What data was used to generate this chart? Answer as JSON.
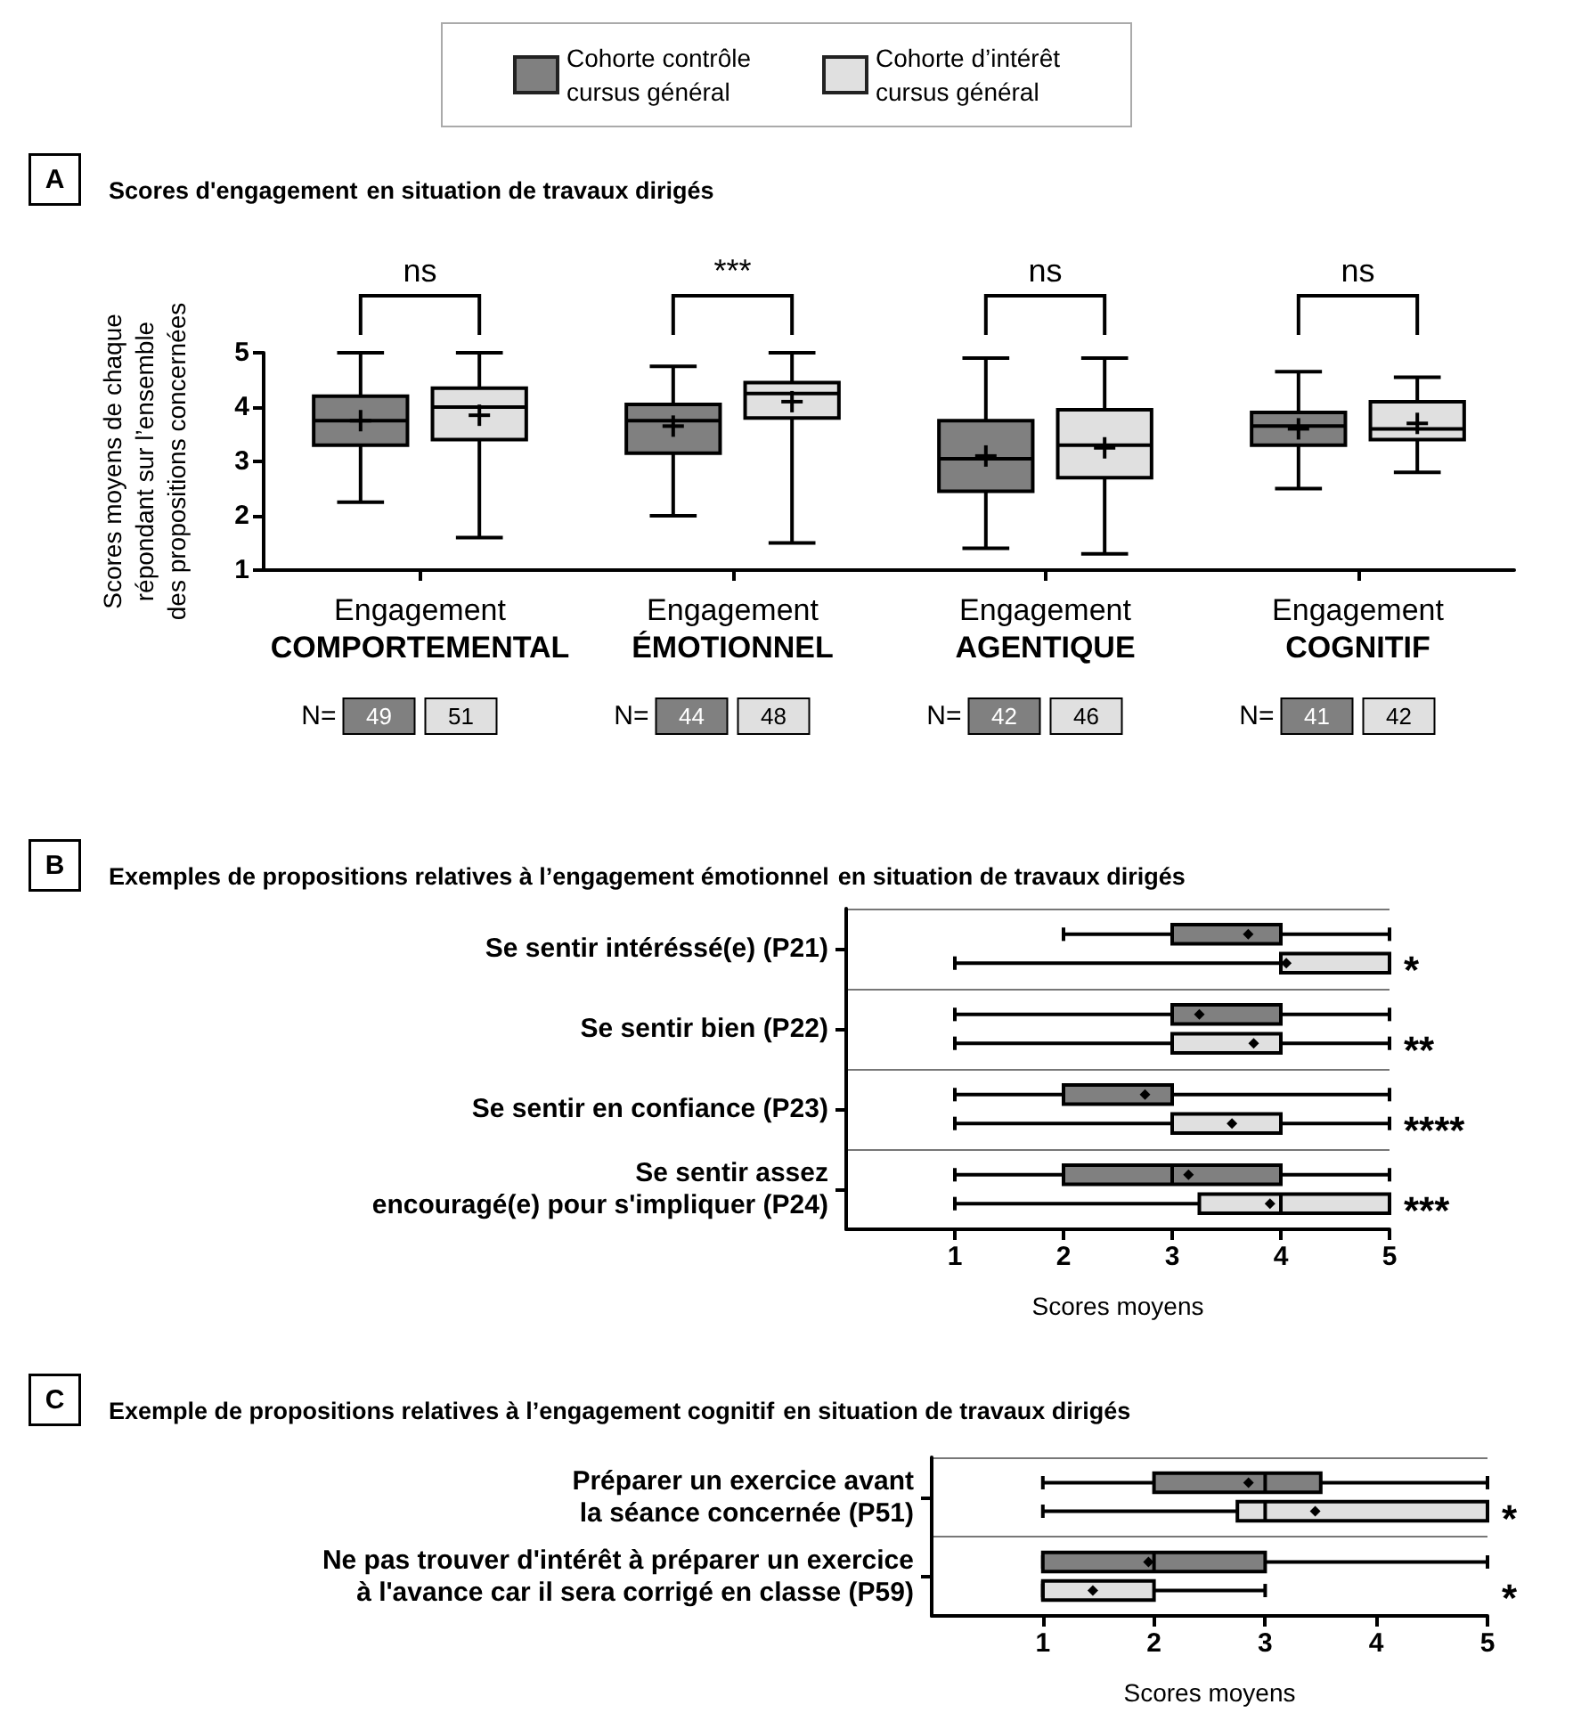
{
  "chart_data": [
    {
      "type": "box",
      "title": "Scores d'engagement",
      "subtitle": "en situation de travaux dirigés",
      "ylabel": "Scores moyens de chaque\nrépondant sur l’ensemble\ndes propositions concernées",
      "categories": [
        "Engagement\nCOMPORTEMENTAL",
        "Engagement\nÉMOTIONNEL",
        "Engagement\nAGENTIQUE",
        "Engagement\nCOGNITIF"
      ],
      "ylim": [
        1,
        5
      ],
      "yticks": [
        1,
        2,
        3,
        4,
        5
      ],
      "grid": false,
      "legend": "top",
      "marker": "cross",
      "series": [
        {
          "name": "Cohorte contrôle\ncursus général",
          "color": "#808080",
          "boxes": [
            {
              "low": 2.25,
              "q1": 3.3,
              "median": 3.75,
              "q3": 4.2,
              "high": 5,
              "mean": 3.75
            },
            {
              "low": 2.0,
              "q1": 3.15,
              "median": 3.75,
              "q3": 4.05,
              "high": 4.75,
              "mean": 3.65
            },
            {
              "low": 1.4,
              "q1": 2.45,
              "median": 3.05,
              "q3": 3.75,
              "high": 4.9,
              "mean": 3.1
            },
            {
              "low": 2.5,
              "q1": 3.3,
              "median": 3.65,
              "q3": 3.9,
              "high": 4.65,
              "mean": 3.6
            }
          ]
        },
        {
          "name": "Cohorte d’intérêt\ncursus général",
          "color": "#e0e0e0",
          "boxes": [
            {
              "low": 1.6,
              "q1": 3.4,
              "median": 4.0,
              "q3": 4.35,
              "high": 5,
              "mean": 3.85
            },
            {
              "low": 1.5,
              "q1": 3.8,
              "median": 4.25,
              "q3": 4.45,
              "high": 5,
              "mean": 4.1
            },
            {
              "low": 1.3,
              "q1": 2.7,
              "median": 3.3,
              "q3": 3.95,
              "high": 4.9,
              "mean": 3.25
            },
            {
              "low": 2.8,
              "q1": 3.4,
              "median": 3.6,
              "q3": 4.1,
              "high": 4.55,
              "mean": 3.7
            }
          ]
        }
      ],
      "annotations": [
        "A",
        "ns",
        "N=",
        "49",
        "51",
        "***",
        "N=",
        "44",
        "48",
        "ns",
        "N=",
        "42",
        "46",
        "ns",
        "N=",
        "41",
        "42"
      ]
    },
    {
      "type": "box",
      "orientation": "horizontal",
      "title": "Exemples de propositions relatives à l’engagement émotionnel",
      "subtitle": "en situation de travaux dirigés",
      "xlabel": "Scores moyens",
      "categories": [
        "Se sentir intéréssé(e) (P21)",
        "Se sentir bien (P22)",
        "Se sentir en confiance (P23)",
        "Se sentir assez\nencouragé(e) pour s'impliquer (P24)"
      ],
      "xlim": [
        0,
        5
      ],
      "xticks": [
        1,
        2,
        3,
        4,
        5
      ],
      "grid": "y",
      "marker": "diamond",
      "series": [
        {
          "color": "#808080",
          "boxes": [
            {
              "low": 2,
              "q1": 3,
              "median": 4,
              "q3": 4,
              "high": 5,
              "mean": 3.7
            },
            {
              "low": 1,
              "q1": 3,
              "median": 3,
              "q3": 4,
              "high": 5,
              "mean": 3.25
            },
            {
              "low": 1,
              "q1": 2,
              "median": 3,
              "q3": 3,
              "high": 5,
              "mean": 2.75
            },
            {
              "low": 1,
              "q1": 2,
              "median": 3,
              "q3": 4,
              "high": 5,
              "mean": 3.15
            }
          ]
        },
        {
          "color": "#e0e0e0",
          "boxes": [
            {
              "low": 1,
              "q1": 4,
              "median": 4,
              "q3": 5,
              "high": 5,
              "mean": 4.05
            },
            {
              "low": 1,
              "q1": 3,
              "median": 4,
              "q3": 4,
              "high": 5,
              "mean": 3.75
            },
            {
              "low": 1,
              "q1": 3,
              "median": 4,
              "q3": 4,
              "high": 5,
              "mean": 3.55
            },
            {
              "low": 1,
              "q1": 3.25,
              "median": 4,
              "q3": 5,
              "high": 5,
              "mean": 3.9
            }
          ]
        }
      ],
      "annotations": [
        "B",
        "*",
        "**",
        "****",
        "***"
      ]
    },
    {
      "type": "box",
      "orientation": "horizontal",
      "title": "Exemple de propositions relatives à l’engagement cognitif",
      "subtitle": "en situation de travaux dirigés",
      "xlabel": "Scores moyens",
      "categories": [
        "Préparer un exercice avant\nla séance concernée (P51)",
        "Ne pas trouver d'intérêt à préparer un exercice\nà l'avance car il sera corrigé en classe (P59)"
      ],
      "xlim": [
        0,
        5
      ],
      "xticks": [
        1,
        2,
        3,
        4,
        5
      ],
      "grid": "y",
      "marker": "diamond",
      "series": [
        {
          "color": "#808080",
          "boxes": [
            {
              "low": 1,
              "q1": 2,
              "median": 3,
              "q3": 3.5,
              "high": 5,
              "mean": 2.85
            },
            {
              "low": 1,
              "q1": 1,
              "median": 2,
              "q3": 3,
              "high": 5,
              "mean": 1.95
            }
          ]
        },
        {
          "color": "#e0e0e0",
          "boxes": [
            {
              "low": 1,
              "q1": 2.75,
              "median": 3,
              "q3": 5,
              "high": 5,
              "mean": 3.45
            },
            {
              "low": 1,
              "q1": 1,
              "median": 1,
              "q3": 2,
              "high": 3,
              "mean": 1.45
            }
          ]
        }
      ],
      "annotations": [
        "C",
        "*",
        "*"
      ]
    }
  ]
}
